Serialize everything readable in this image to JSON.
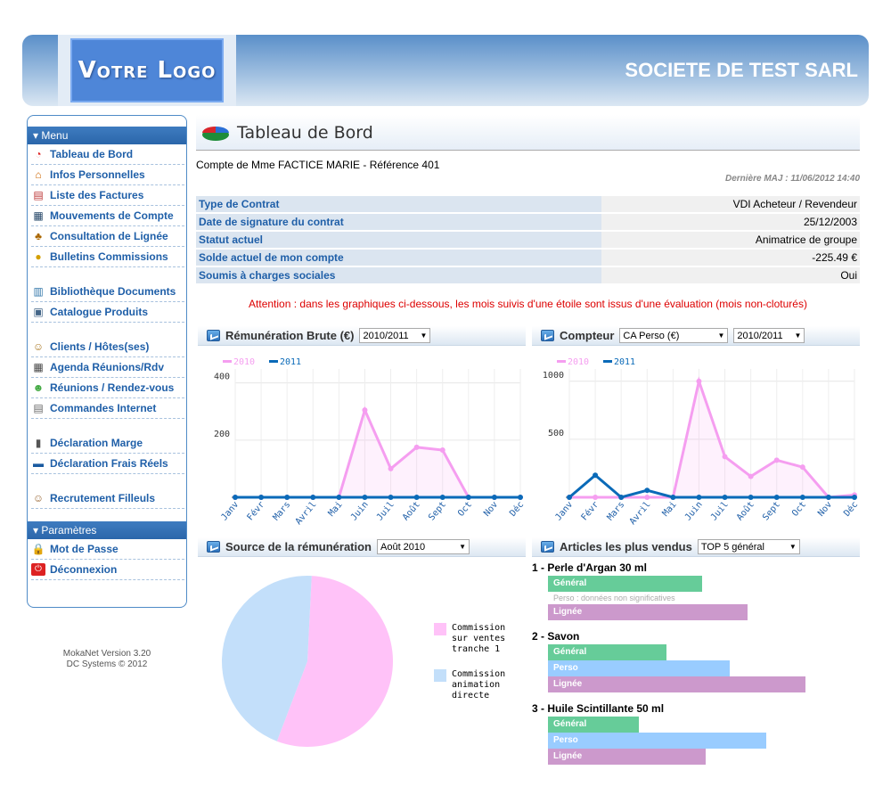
{
  "header": {
    "logo_text": "Votre Logo",
    "company": "SOCIETE DE TEST SARL"
  },
  "sidebar": {
    "menu_title": "Menu",
    "items": [
      {
        "label": "Tableau de Bord",
        "icon": "dashboard-icon"
      },
      {
        "label": "Infos Personnelles",
        "icon": "house-icon"
      },
      {
        "label": "Liste des Factures",
        "icon": "invoice-icon"
      },
      {
        "label": "Mouvements de Compte",
        "icon": "account-icon"
      },
      {
        "label": "Consultation de Lignée",
        "icon": "lineage-icon"
      },
      {
        "label": "Bulletins Commissions",
        "icon": "coin-icon"
      }
    ],
    "items2": [
      {
        "label": "Bibliothèque Documents",
        "icon": "books-icon"
      },
      {
        "label": "Catalogue Produits",
        "icon": "catalog-icon"
      }
    ],
    "items3": [
      {
        "label": "Clients / Hôtes(ses)",
        "icon": "clients-icon"
      },
      {
        "label": "Agenda Réunions/Rdv",
        "icon": "calendar-icon"
      },
      {
        "label": "Réunions / Rendez-vous",
        "icon": "meeting-icon"
      },
      {
        "label": "Commandes Internet",
        "icon": "order-icon"
      }
    ],
    "items4": [
      {
        "label": "Déclaration Marge",
        "icon": "margin-icon"
      },
      {
        "label": "Déclaration Frais Réels",
        "icon": "expenses-icon"
      }
    ],
    "items5": [
      {
        "label": "Recrutement Filleuls",
        "icon": "recruit-icon"
      }
    ],
    "params_title": "Paramètres",
    "params": [
      {
        "label": "Mot de Passe",
        "icon": "lock-icon"
      },
      {
        "label": "Déconnexion",
        "icon": "logout-icon"
      }
    ],
    "version": "MokaNet Version 3.20",
    "copyright": "DC Systems © 2012"
  },
  "main": {
    "title": "Tableau de Bord",
    "account": "Compte de Mme FACTICE MARIE - Référence 401",
    "last_update": "Dernière MAJ : 11/06/2012 14:40",
    "info": [
      {
        "k": "Type de Contrat",
        "v": "VDI Acheteur / Revendeur"
      },
      {
        "k": "Date de signature du contrat",
        "v": "25/12/2003"
      },
      {
        "k": "Statut actuel",
        "v": "Animatrice de groupe"
      },
      {
        "k": "Solde actuel de mon compte",
        "v": "-225.49 €"
      },
      {
        "k": "Soumis à charges sociales",
        "v": "Oui"
      }
    ],
    "warning": "Attention : dans les graphiques ci-dessous, les mois suivis d'une étoile sont issus d'une évaluation (mois non-cloturés)"
  },
  "panels": {
    "remun": {
      "title": "Rémunération Brute (€)",
      "select": "2010/2011"
    },
    "compteur": {
      "title": "Compteur",
      "select1": "CA Perso (€)",
      "select2": "2010/2011"
    },
    "source": {
      "title": "Source de la rémunération",
      "select": "Août 2010"
    },
    "articles": {
      "title": "Articles les plus vendus",
      "select": "TOP 5 général"
    }
  },
  "chart_data": [
    {
      "type": "area",
      "name": "Rémunération Brute",
      "categories": [
        "Janv",
        "Févr",
        "Mars",
        "Avril",
        "Mai",
        "Juin",
        "Juil",
        "Août",
        "Sept",
        "Oct",
        "Nov",
        "Déc"
      ],
      "series": [
        {
          "name": "2010",
          "color": "#f59ef0",
          "values": [
            0,
            0,
            0,
            0,
            0,
            305,
            100,
            175,
            165,
            0,
            0,
            0
          ]
        },
        {
          "name": "2011",
          "color": "#0a6ab8",
          "values": [
            0,
            0,
            0,
            0,
            0,
            0,
            0,
            0,
            0,
            0,
            0,
            0
          ]
        }
      ],
      "yticks": [
        200,
        400
      ],
      "ylim": [
        0,
        430
      ]
    },
    {
      "type": "area",
      "name": "Compteur",
      "categories": [
        "Janv",
        "Févr",
        "Mars",
        "Avril",
        "Mai",
        "Juin",
        "Juil",
        "Août",
        "Sept",
        "Oct",
        "Nov",
        "Déc"
      ],
      "series": [
        {
          "name": "2010",
          "color": "#f59ef0",
          "values": [
            0,
            0,
            0,
            0,
            0,
            1000,
            350,
            180,
            320,
            260,
            0,
            20
          ]
        },
        {
          "name": "2011",
          "color": "#0a6ab8",
          "values": [
            0,
            190,
            0,
            60,
            0,
            0,
            0,
            0,
            0,
            0,
            0,
            0
          ]
        }
      ],
      "yticks": [
        500,
        1000
      ],
      "ylim": [
        0,
        1060
      ]
    },
    {
      "type": "pie",
      "name": "Source de la rémunération",
      "slices": [
        {
          "label": "Commission sur ventes tranche 1",
          "value": 55,
          "color": "#ffc2f8"
        },
        {
          "label": "Commission animation directe",
          "value": 45,
          "color": "#c3dffa"
        }
      ]
    }
  ],
  "articles": [
    {
      "title": "1 - Perle d'Argan 30 ml",
      "bars": [
        {
          "label": "Général",
          "value": 0.51,
          "color": "#66cc99"
        }
      ],
      "note": "Perso : données non significatives",
      "bars2": [
        {
          "label": "Lignée",
          "value": 0.66,
          "color": "#cc99cc"
        }
      ]
    },
    {
      "title": "2 - Savon",
      "bars": [
        {
          "label": "Général",
          "value": 0.39,
          "color": "#66cc99"
        },
        {
          "label": "Perso",
          "value": 0.6,
          "color": "#99ccff"
        },
        {
          "label": "Lignée",
          "value": 0.85,
          "color": "#cc99cc"
        }
      ]
    },
    {
      "title": "3 - Huile Scintillante 50 ml",
      "bars": [
        {
          "label": "Général",
          "value": 0.3,
          "color": "#66cc99"
        },
        {
          "label": "Perso",
          "value": 0.72,
          "color": "#99ccff"
        },
        {
          "label": "Lignée",
          "value": 0.52,
          "color": "#cc99cc"
        }
      ]
    }
  ]
}
